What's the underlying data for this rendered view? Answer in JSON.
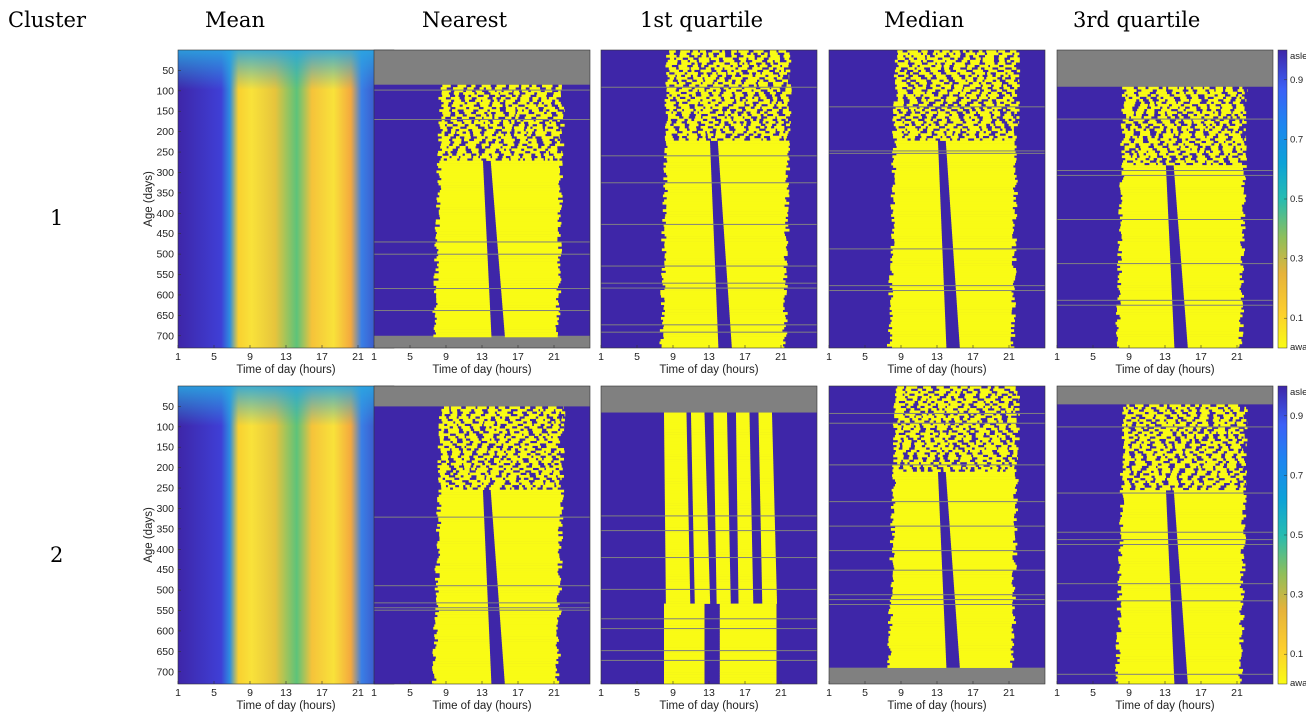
{
  "figure": {
    "header_label": "Cluster",
    "column_titles": [
      "Mean",
      "Nearest",
      "1st quartile",
      "Median",
      "3rd quartile"
    ],
    "row_labels": [
      "1",
      "2"
    ]
  },
  "chart_data": {
    "type": "heatmap",
    "xlabel": "Time of day (hours)",
    "ylabel": "Age (days)",
    "xticks": [
      1,
      5,
      9,
      13,
      17,
      21
    ],
    "yticks": [
      50,
      100,
      150,
      200,
      250,
      300,
      350,
      400,
      450,
      500,
      550,
      600,
      650,
      700
    ],
    "xlim": [
      1,
      25
    ],
    "ylim": [
      0,
      730
    ],
    "colorbar": {
      "min_label": "awake",
      "max_label": "asleep",
      "ticks": [
        "0.1",
        "0.3",
        "0.5",
        "0.7",
        "0.9"
      ],
      "values": [
        0.1,
        0.3,
        0.5,
        0.7,
        0.9
      ],
      "range": [
        0,
        1
      ]
    },
    "colors": {
      "asleep": "#3e26a8",
      "awake": "#f9fb15",
      "missing": "#808080"
    }
  }
}
